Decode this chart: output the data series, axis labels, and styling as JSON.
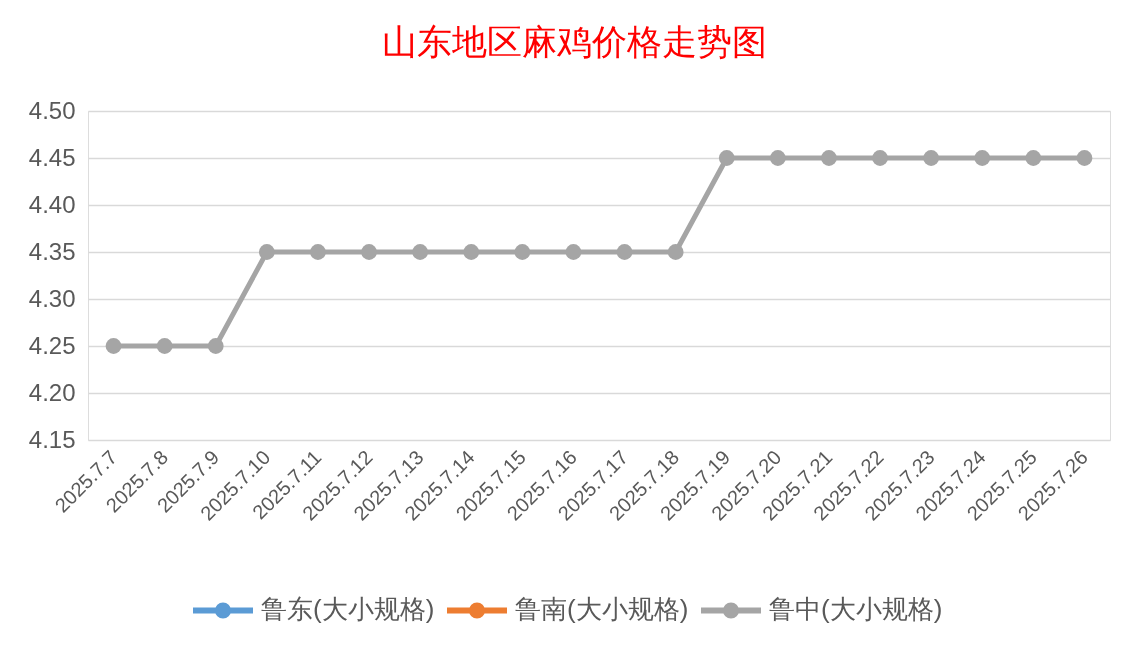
{
  "chart_data": {
    "type": "line",
    "title": "山东地区麻鸡价格走势图",
    "categories": [
      "2025.7.7",
      "2025.7.8",
      "2025.7.9",
      "2025.7.10",
      "2025.7.11",
      "2025.7.12",
      "2025.7.13",
      "2025.7.14",
      "2025.7.15",
      "2025.7.16",
      "2025.7.17",
      "2025.7.18",
      "2025.7.19",
      "2025.7.20",
      "2025.7.21",
      "2025.7.22",
      "2025.7.23",
      "2025.7.24",
      "2025.7.25",
      "2025.7.26"
    ],
    "series": [
      {
        "name": "鲁东(大小规格)",
        "color": "#5b9bd5",
        "values": [
          null,
          null,
          null,
          null,
          null,
          null,
          null,
          null,
          null,
          null,
          null,
          null,
          null,
          null,
          null,
          null,
          null,
          null,
          null,
          null
        ]
      },
      {
        "name": "鲁南(大小规格)",
        "color": "#ed7d31",
        "values": [
          null,
          null,
          null,
          null,
          null,
          null,
          null,
          null,
          null,
          null,
          null,
          null,
          null,
          null,
          null,
          null,
          null,
          null,
          null,
          null
        ]
      },
      {
        "name": "鲁中(大小规格)",
        "color": "#a5a5a5",
        "values": [
          4.25,
          4.25,
          4.25,
          4.35,
          4.35,
          4.35,
          4.35,
          4.35,
          4.35,
          4.35,
          4.35,
          4.35,
          4.45,
          4.45,
          4.45,
          4.45,
          4.45,
          4.45,
          4.45,
          4.45
        ]
      }
    ],
    "ylim": [
      4.15,
      4.5
    ],
    "yticks": [
      4.15,
      {
        "value": 4.2,
        "label": "4.20"
      },
      4.25,
      {
        "value": 4.3,
        "label": "4.30"
      },
      4.35,
      {
        "value": 4.4,
        "label": "4.40"
      },
      4.45,
      {
        "value": 4.5,
        "label": "4.50"
      }
    ],
    "grid": "y",
    "legend": "bottom",
    "marker": "circle",
    "line_style": "solid"
  }
}
